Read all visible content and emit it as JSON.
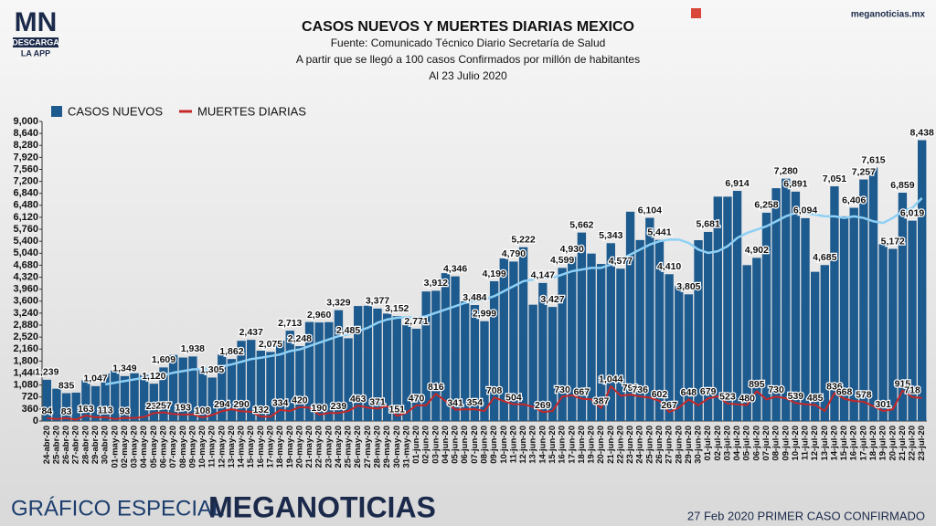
{
  "branding": {
    "logo": "MN",
    "logo_sub": "DESCARGA",
    "logo_app": "LA APP",
    "site": "meganoticias.mx",
    "footer_left": "GRÁFICO ESPECIAL",
    "footer_brand": "MEGANOTICIAS",
    "footer_right": "27 Feb 2020 PRIMER CASO CONFIRMADO"
  },
  "chart_data": {
    "type": "bar",
    "title": "CASOS NUEVOS Y MUERTES DIARIAS MEXICO",
    "subtitles": [
      "Fuente: Comunicado Técnico Diario Secretaría de Salud",
      "A partir que se llegó a 100 casos Confirmados por millón de habitantes",
      "Al 23 Julio 2020"
    ],
    "categories": [
      "24-abr-20",
      "25-abr-20",
      "26-abr-20",
      "27-abr-20",
      "28-abr-20",
      "29-abr-20",
      "30-abr-20",
      "01-may-20",
      "02-may-20",
      "03-may-20",
      "04-may-20",
      "05-may-20",
      "06-may-20",
      "07-may-20",
      "08-may-20",
      "09-may-20",
      "10-may-20",
      "11-may-20",
      "12-may-20",
      "13-may-20",
      "14-may-20",
      "15-may-20",
      "16-may-20",
      "17-may-20",
      "18-may-20",
      "19-may-20",
      "20-may-20",
      "21-may-20",
      "22-may-20",
      "23-may-20",
      "24-may-20",
      "25-may-20",
      "26-may-20",
      "27-may-20",
      "28-may-20",
      "29-may-20",
      "30-may-20",
      "31-may-20",
      "01-jun-20",
      "02-jun-20",
      "03-jun-20",
      "04-jun-20",
      "05-jun-20",
      "06-jun-20",
      "07-jun-20",
      "08-jun-20",
      "09-jun-20",
      "10-jun-20",
      "11-jun-20",
      "12-jun-20",
      "13-jun-20",
      "14-jun-20",
      "15-jun-20",
      "16-jun-20",
      "17-jun-20",
      "18-jun-20",
      "19-jun-20",
      "20-jun-20",
      "21-jun-20",
      "22-jun-20",
      "23-jun-20",
      "24-jun-20",
      "25-jun-20",
      "26-jun-20",
      "27-jun-20",
      "28-jun-20",
      "29-jun-20",
      "30-jun-20",
      "01-jul-20",
      "02-jul-20",
      "03-jul-20",
      "04-jul-20",
      "05-jul-20",
      "06-jul-20",
      "07-jul-20",
      "08-jul-20",
      "09-jul-20",
      "10-jul-20",
      "11-jul-20",
      "12-jul-20",
      "13-jul-20",
      "14-jul-20",
      "15-jul-20",
      "16-jul-20",
      "17-jul-20",
      "18-jul-20",
      "19-jul-20",
      "20-jul-20",
      "21-jul-20",
      "22-jul-20",
      "23-jul-20"
    ],
    "series": [
      {
        "name": "CASOS NUEVOS",
        "type": "bar",
        "color": "#1d5a8e",
        "values": [
          1239,
          970,
          835,
          852,
          1223,
          1047,
          1425,
          1515,
          1349,
          1434,
          1383,
          1120,
          1609,
          1982,
          1906,
          1938,
          1562,
          1305,
          1997,
          1862,
          2409,
          2437,
          2112,
          2075,
          2414,
          2713,
          2248,
          2973,
          2960,
          2970,
          3329,
          2485,
          3455,
          3463,
          3377,
          3227,
          3152,
          2885,
          2771,
          3891,
          3912,
          4442,
          4346,
          3593,
          3484,
          2999,
          4199,
          4883,
          4790,
          5222,
          3494,
          4147,
          3427,
          4599,
          4930,
          5662,
          5030,
          4717,
          5343,
          4577,
          6288,
          5437,
          6104,
          5441,
          4410,
          4050,
          3805,
          5432,
          5681,
          6741,
          6740,
          6914,
          4683,
          4902,
          6258,
          6995,
          7280,
          6891,
          6094,
          4482,
          4685,
          7051,
          6149,
          6406,
          7257,
          7615,
          5311,
          5172,
          6859,
          6019,
          8438
        ],
        "value_labels": [
          "1,239",
          null,
          "835",
          null,
          null,
          "1,047",
          null,
          null,
          "1,349",
          null,
          null,
          "1,120",
          "1,609",
          null,
          null,
          "1,938",
          null,
          "1,305",
          null,
          "1,862",
          null,
          "2,437",
          null,
          "2,075",
          null,
          "2,713",
          "2,248",
          null,
          "2,960",
          null,
          "3,329",
          "2,485",
          null,
          null,
          "3,377",
          null,
          "3,152",
          null,
          "2,771",
          null,
          "3,912",
          null,
          "4,346",
          null,
          "3,484",
          "2,999",
          "4,199",
          null,
          "4,790",
          "5,222",
          null,
          "4,147",
          "3,427",
          "4,599",
          "4,930",
          "5,662",
          null,
          null,
          "5,343",
          "4,577",
          null,
          null,
          "6,104",
          "5,441",
          "4,410",
          null,
          "3,805",
          null,
          "5,681",
          null,
          null,
          "6,914",
          null,
          "4,902",
          "6,258",
          null,
          "7,280",
          "6,891",
          "6,094",
          null,
          "4,685",
          "7,051",
          null,
          "6,406",
          "7,257",
          "7,615",
          null,
          "5,172",
          "6,859",
          "6,019",
          "8,438"
        ]
      },
      {
        "name": "MUERTES DIARIAS",
        "type": "line",
        "color": "#c62828",
        "values": [
          84,
          60,
          83,
          40,
          163,
          110,
          113,
          60,
          93,
          90,
          120,
          236,
          257,
          210,
          193,
          199,
          108,
          179,
          294,
          353,
          290,
          278,
          132,
          130,
          334,
          300,
          420,
          400,
          190,
          240,
          239,
          300,
          463,
          400,
          371,
          447,
          151,
          250,
          470,
          470,
          816,
          600,
          341,
          350,
          354,
          300,
          708,
          596,
          504,
          500,
          424,
          269,
          300,
          730,
          770,
          667,
          650,
          387,
          1044,
          759,
          793,
          736,
          700,
          602,
          267,
          400,
          648,
          473,
          679,
          741,
          523,
          500,
          480,
          895,
          650,
          730,
          682,
          539,
          500,
          485,
          300,
          836,
          668,
          600,
          578,
          444,
          301,
          350,
          915,
          718,
          688
        ],
        "value_labels": [
          "84",
          null,
          "83",
          null,
          "163",
          null,
          "113",
          null,
          "93",
          null,
          null,
          "236",
          "257",
          null,
          "193",
          null,
          "108",
          null,
          "294",
          null,
          "290",
          null,
          "132",
          null,
          "334",
          null,
          "420",
          null,
          "190",
          null,
          "239",
          null,
          "463",
          null,
          "371",
          null,
          "151",
          null,
          "470",
          null,
          "816",
          null,
          "341",
          null,
          "354",
          null,
          "708",
          null,
          "504",
          null,
          null,
          "269",
          null,
          "730",
          null,
          "667",
          null,
          "387",
          "1,044",
          null,
          "793",
          "736",
          null,
          "602",
          "267",
          null,
          "648",
          null,
          "679",
          null,
          "523",
          null,
          "480",
          "895",
          null,
          "730",
          null,
          "539",
          null,
          "485",
          null,
          "836",
          "668",
          null,
          "578",
          null,
          "301",
          null,
          "915",
          "718",
          null
        ]
      },
      {
        "type": "line",
        "color": "#8fd0f5",
        "values": [
          null,
          null,
          null,
          null,
          null,
          null,
          1100,
          1150,
          1200,
          1250,
          1300,
          1330,
          1380,
          1450,
          1500,
          1550,
          1560,
          1580,
          1640,
          1700,
          1780,
          1860,
          1900,
          1950,
          2000,
          2100,
          2150,
          2250,
          2350,
          2450,
          2550,
          2600,
          2700,
          2800,
          2950,
          3050,
          3100,
          3120,
          3100,
          3150,
          3250,
          3350,
          3450,
          3550,
          3600,
          3650,
          3750,
          3900,
          4050,
          4200,
          4250,
          4300,
          4300,
          4400,
          4500,
          4550,
          4600,
          4600,
          4700,
          4850,
          5000,
          5150,
          5300,
          5400,
          5450,
          5450,
          5350,
          5150,
          5050,
          5100,
          5250,
          5500,
          5650,
          5750,
          5850,
          6000,
          6150,
          6250,
          6250,
          6200,
          6150,
          6150,
          6100,
          6150,
          6100,
          6000,
          5950,
          6100,
          6300,
          6400,
          6700
        ]
      }
    ],
    "ylim": [
      0,
      9000
    ],
    "yticks": [
      0,
      360,
      720,
      {
        "value": 1080,
        "label": "1,080"
      },
      {
        "value": 1440,
        "label": "1,440"
      },
      {
        "value": 1800,
        "label": "1,800"
      },
      {
        "value": 2160,
        "label": "2,160"
      },
      {
        "value": 2520,
        "label": "2,520"
      },
      {
        "value": 2880,
        "label": "2,880"
      },
      {
        "value": 3240,
        "label": "3,240"
      },
      {
        "value": 3600,
        "label": "3,600"
      },
      {
        "value": 3960,
        "label": "3,960"
      },
      {
        "value": 4320,
        "label": "4,320"
      },
      {
        "value": 4680,
        "label": "4,680"
      },
      {
        "value": 5040,
        "label": "5,040"
      },
      {
        "value": 5400,
        "label": "5,400"
      },
      {
        "value": 5760,
        "label": "5,760"
      },
      {
        "value": 6120,
        "label": "6,120"
      },
      {
        "value": 6480,
        "label": "6,480"
      },
      {
        "value": 6840,
        "label": "6,840"
      },
      {
        "value": 7200,
        "label": "7,200"
      },
      {
        "value": 7560,
        "label": "7,560"
      },
      {
        "value": 7920,
        "label": "7,920"
      },
      {
        "value": 8280,
        "label": "8,280"
      },
      {
        "value": 8640,
        "label": "8,640"
      },
      {
        "value": 9000,
        "label": "9,000"
      }
    ],
    "grid": false,
    "legend": "top-left"
  }
}
